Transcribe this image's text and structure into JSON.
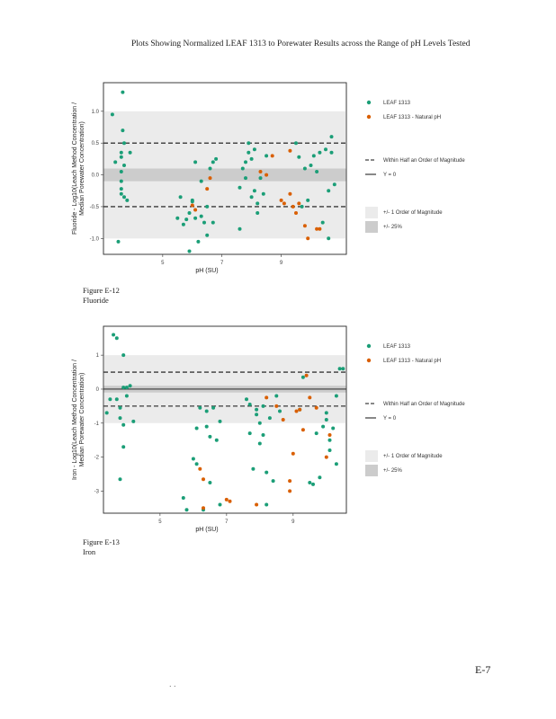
{
  "page": {
    "title": "Plots Showing Normalized LEAF 1313 to Porewater Results across the Range of pH Levels Tested",
    "page_number": "E-7",
    "footer_mark": ". ."
  },
  "colors": {
    "leaf": "#1b9e77",
    "natural": "#d95f02",
    "band_outer": "#ebebeb",
    "band_inner": "#cccccc"
  },
  "chart_data": [
    {
      "type": "scatter",
      "caption_figure": "Figure E-12",
      "caption_name": "Fluoride",
      "xlabel": "pH (SU)",
      "ylabel_line1": "Fluoride - Log10(Leach Method Concentration /",
      "ylabel_line2": "Median Porewater Concentration)",
      "xlim": [
        3.0,
        11.2
      ],
      "ylim": [
        -1.25,
        1.45
      ],
      "xticks": [
        5,
        7,
        9
      ],
      "xtick_labels": [
        "5",
        "7",
        "9"
      ],
      "yticks": [
        1.0,
        0.5,
        0.0,
        -0.5,
        -1.0
      ],
      "ytick_labels": [
        "1.0",
        "0.5",
        "0.0",
        "-0.5",
        "-1.0"
      ],
      "half_order": 0.5,
      "one_order": 1.0,
      "pct25": 0.1,
      "show_y0_line": false,
      "legend_series": [
        "LEAF 1313",
        "LEAF 1313 - Natural pH"
      ],
      "legend_lines": [
        "Within Half an Order of Magnitude",
        "Y = 0"
      ],
      "legend_bands": [
        "+/- 1 Order of Magnitude",
        "+/- 25%"
      ],
      "series": [
        {
          "name": "LEAF 1313",
          "points": [
            [
              3.3,
              0.95
            ],
            [
              3.4,
              0.2
            ],
            [
              3.5,
              -1.05
            ],
            [
              3.6,
              0.35
            ],
            [
              3.6,
              0.28
            ],
            [
              3.6,
              0.05
            ],
            [
              3.6,
              -0.1
            ],
            [
              3.6,
              -0.3
            ],
            [
              3.6,
              -0.22
            ],
            [
              3.65,
              1.3
            ],
            [
              3.65,
              0.7
            ],
            [
              3.7,
              0.5
            ],
            [
              3.7,
              0.15
            ],
            [
              3.7,
              -0.35
            ],
            [
              3.8,
              -0.4
            ],
            [
              3.9,
              0.35
            ],
            [
              5.5,
              -0.68
            ],
            [
              5.6,
              -0.35
            ],
            [
              5.7,
              -0.78
            ],
            [
              5.8,
              -0.7
            ],
            [
              5.9,
              -0.6
            ],
            [
              5.9,
              -1.2
            ],
            [
              6.0,
              -0.4
            ],
            [
              6.0,
              -0.42
            ],
            [
              6.1,
              -0.68
            ],
            [
              6.1,
              0.2
            ],
            [
              6.2,
              -1.05
            ],
            [
              6.3,
              -0.65
            ],
            [
              6.3,
              -0.1
            ],
            [
              6.4,
              -0.75
            ],
            [
              6.5,
              -0.5
            ],
            [
              6.5,
              -0.95
            ],
            [
              6.6,
              0.1
            ],
            [
              6.7,
              0.2
            ],
            [
              6.7,
              -0.75
            ],
            [
              6.8,
              0.25
            ],
            [
              7.6,
              -0.85
            ],
            [
              7.6,
              -0.2
            ],
            [
              7.7,
              0.1
            ],
            [
              7.8,
              0.2
            ],
            [
              7.8,
              -0.05
            ],
            [
              7.9,
              0.35
            ],
            [
              7.9,
              0.5
            ],
            [
              8.0,
              -0.35
            ],
            [
              8.0,
              0.25
            ],
            [
              8.1,
              -0.25
            ],
            [
              8.1,
              0.4
            ],
            [
              8.2,
              -0.6
            ],
            [
              8.2,
              -0.45
            ],
            [
              8.3,
              -0.05
            ],
            [
              8.4,
              -0.3
            ],
            [
              8.5,
              0.3
            ],
            [
              9.5,
              0.5
            ],
            [
              9.6,
              0.28
            ],
            [
              9.7,
              -0.5
            ],
            [
              9.8,
              0.1
            ],
            [
              9.9,
              -0.4
            ],
            [
              10.0,
              0.15
            ],
            [
              10.1,
              0.3
            ],
            [
              10.2,
              0.05
            ],
            [
              10.3,
              0.35
            ],
            [
              10.4,
              -0.75
            ],
            [
              10.5,
              0.4
            ],
            [
              10.6,
              -0.25
            ],
            [
              10.6,
              -1.0
            ],
            [
              10.7,
              0.35
            ],
            [
              10.7,
              0.6
            ],
            [
              10.8,
              -0.15
            ]
          ]
        },
        {
          "name": "LEAF 1313 - Natural pH",
          "points": [
            [
              6.0,
              -0.48
            ],
            [
              6.1,
              -0.55
            ],
            [
              6.5,
              -0.22
            ],
            [
              6.6,
              -0.05
            ],
            [
              8.3,
              0.05
            ],
            [
              8.5,
              0.0
            ],
            [
              8.7,
              0.3
            ],
            [
              9.0,
              -0.4
            ],
            [
              9.1,
              -0.45
            ],
            [
              9.3,
              -0.3
            ],
            [
              9.3,
              0.38
            ],
            [
              9.4,
              -0.5
            ],
            [
              9.5,
              -0.6
            ],
            [
              9.6,
              -0.45
            ],
            [
              9.8,
              -0.8
            ],
            [
              9.9,
              -1.0
            ],
            [
              10.2,
              -0.85
            ],
            [
              10.3,
              -0.85
            ]
          ]
        }
      ]
    },
    {
      "type": "scatter",
      "caption_figure": "Figure E-13",
      "caption_name": "Iron",
      "xlabel": "pH (SU)",
      "ylabel_line1": "Iron - Log10(Leach Method Concentration /",
      "ylabel_line2": "Median Porewater Concentration)",
      "xlim": [
        3.3,
        10.6
      ],
      "ylim": [
        -3.65,
        1.85
      ],
      "xticks": [
        5,
        7,
        9
      ],
      "xtick_labels": [
        "5",
        "7",
        "9"
      ],
      "yticks": [
        1,
        0,
        -1,
        -2,
        -3
      ],
      "ytick_labels": [
        "1",
        "0",
        "-1",
        "-2",
        "-3"
      ],
      "half_order": 0.5,
      "one_order": 1.0,
      "pct25": 0.1,
      "show_y0_line": true,
      "legend_series": [
        "LEAF 1313",
        "LEAF 1313 - Natural pH"
      ],
      "legend_lines": [
        "Within Half an Order of Magnitude",
        "Y = 0"
      ],
      "legend_bands": [
        "+/- 1 Order of Magnitude",
        "+/- 25%"
      ],
      "series": [
        {
          "name": "LEAF 1313",
          "points": [
            [
              3.4,
              -0.7
            ],
            [
              3.5,
              -0.3
            ],
            [
              3.6,
              1.6
            ],
            [
              3.7,
              1.5
            ],
            [
              3.7,
              -0.3
            ],
            [
              3.8,
              -0.55
            ],
            [
              3.8,
              -0.85
            ],
            [
              3.8,
              -2.65
            ],
            [
              3.9,
              1.0
            ],
            [
              3.9,
              0.05
            ],
            [
              3.9,
              -1.05
            ],
            [
              3.9,
              -1.7
            ],
            [
              4.0,
              -0.2
            ],
            [
              4.0,
              0.05
            ],
            [
              4.1,
              0.1
            ],
            [
              4.2,
              -0.95
            ],
            [
              5.7,
              -3.2
            ],
            [
              5.8,
              -3.55
            ],
            [
              6.0,
              -2.05
            ],
            [
              6.1,
              -2.2
            ],
            [
              6.1,
              -1.15
            ],
            [
              6.2,
              -0.55
            ],
            [
              6.3,
              -3.55
            ],
            [
              6.4,
              -1.1
            ],
            [
              6.4,
              -0.65
            ],
            [
              6.5,
              -1.4
            ],
            [
              6.5,
              -2.75
            ],
            [
              6.6,
              -0.55
            ],
            [
              6.7,
              -1.5
            ],
            [
              6.8,
              -3.4
            ],
            [
              6.8,
              -0.95
            ],
            [
              7.6,
              -0.3
            ],
            [
              7.7,
              -0.45
            ],
            [
              7.7,
              -1.3
            ],
            [
              7.8,
              -2.35
            ],
            [
              7.9,
              -0.6
            ],
            [
              7.9,
              -0.75
            ],
            [
              8.0,
              -1.6
            ],
            [
              8.0,
              -1.0
            ],
            [
              8.1,
              -0.5
            ],
            [
              8.1,
              -1.35
            ],
            [
              8.2,
              -2.45
            ],
            [
              8.2,
              -3.4
            ],
            [
              8.3,
              -0.85
            ],
            [
              8.4,
              -2.7
            ],
            [
              8.5,
              -0.2
            ],
            [
              8.6,
              -0.65
            ],
            [
              9.2,
              -0.6
            ],
            [
              9.3,
              0.35
            ],
            [
              9.5,
              -2.75
            ],
            [
              9.6,
              -2.8
            ],
            [
              9.7,
              -1.3
            ],
            [
              9.8,
              -2.6
            ],
            [
              9.9,
              -1.1
            ],
            [
              10.0,
              -0.9
            ],
            [
              10.0,
              -0.7
            ],
            [
              10.1,
              -1.5
            ],
            [
              10.2,
              -1.15
            ],
            [
              10.3,
              -0.2
            ],
            [
              10.4,
              0.6
            ],
            [
              10.5,
              0.6
            ],
            [
              10.3,
              -2.2
            ],
            [
              10.1,
              -1.8
            ]
          ]
        },
        {
          "name": "LEAF 1313 - Natural pH",
          "points": [
            [
              6.2,
              -2.35
            ],
            [
              6.3,
              -2.65
            ],
            [
              6.3,
              -3.5
            ],
            [
              7.0,
              -3.25
            ],
            [
              7.1,
              -3.3
            ],
            [
              7.9,
              -3.4
            ],
            [
              8.2,
              -0.25
            ],
            [
              8.5,
              -0.5
            ],
            [
              8.7,
              -0.9
            ],
            [
              8.9,
              -3.0
            ],
            [
              8.9,
              -2.7
            ],
            [
              9.0,
              -1.9
            ],
            [
              9.1,
              -0.65
            ],
            [
              9.2,
              -0.6
            ],
            [
              9.3,
              -1.2
            ],
            [
              9.4,
              0.4
            ],
            [
              9.5,
              -0.25
            ],
            [
              9.7,
              -0.55
            ],
            [
              10.0,
              -2.0
            ],
            [
              10.1,
              -1.35
            ]
          ]
        }
      ]
    }
  ]
}
